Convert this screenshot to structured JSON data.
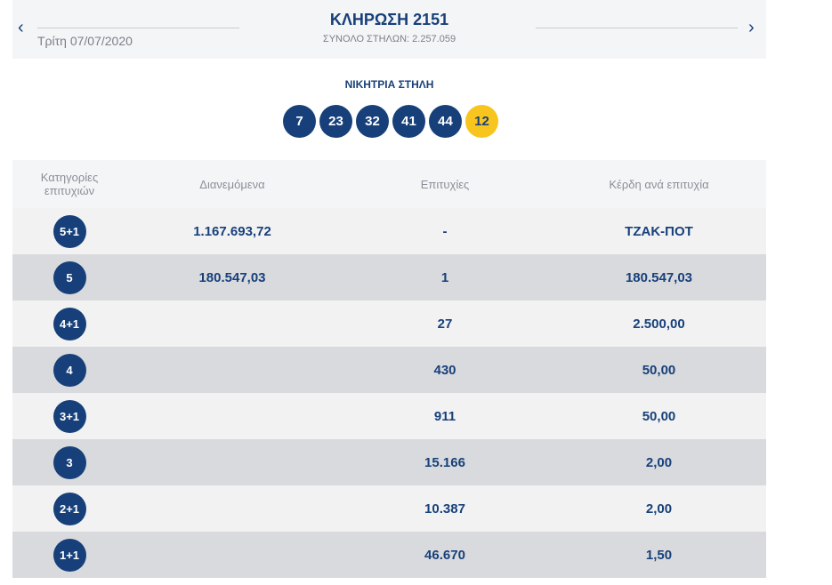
{
  "header": {
    "title": "ΚΛΗΡΩΣΗ 2151",
    "date": "Τρίτη 07/07/2020",
    "total": "ΣΥΝΟΛΟ ΣΤΗΛΩΝ: 2.257.059",
    "prev": "‹",
    "next": "›"
  },
  "winning": {
    "label": "ΝΙΚΗΤΡΙΑ ΣΤΗΛΗ",
    "numbers": [
      "7",
      "23",
      "32",
      "41",
      "44"
    ],
    "bonus": "12"
  },
  "colors": {
    "navy": "#17407a",
    "yellow": "#f7c51e"
  },
  "table": {
    "headers": [
      "Κατηγορίες επιτυχιών",
      "Διανεμόμενα",
      "Επιτυχίες",
      "Κέρδη ανά επιτυχία"
    ],
    "rows": [
      {
        "cat": "5+1",
        "dist": "1.167.693,72",
        "wins": "-",
        "prize": "ΤΖΑΚ-ΠΟΤ"
      },
      {
        "cat": "5",
        "dist": "180.547,03",
        "wins": "1",
        "prize": "180.547,03"
      },
      {
        "cat": "4+1",
        "dist": "",
        "wins": "27",
        "prize": "2.500,00"
      },
      {
        "cat": "4",
        "dist": "",
        "wins": "430",
        "prize": "50,00"
      },
      {
        "cat": "3+1",
        "dist": "",
        "wins": "911",
        "prize": "50,00"
      },
      {
        "cat": "3",
        "dist": "",
        "wins": "15.166",
        "prize": "2,00"
      },
      {
        "cat": "2+1",
        "dist": "",
        "wins": "10.387",
        "prize": "2,00"
      },
      {
        "cat": "1+1",
        "dist": "",
        "wins": "46.670",
        "prize": "1,50"
      }
    ]
  }
}
